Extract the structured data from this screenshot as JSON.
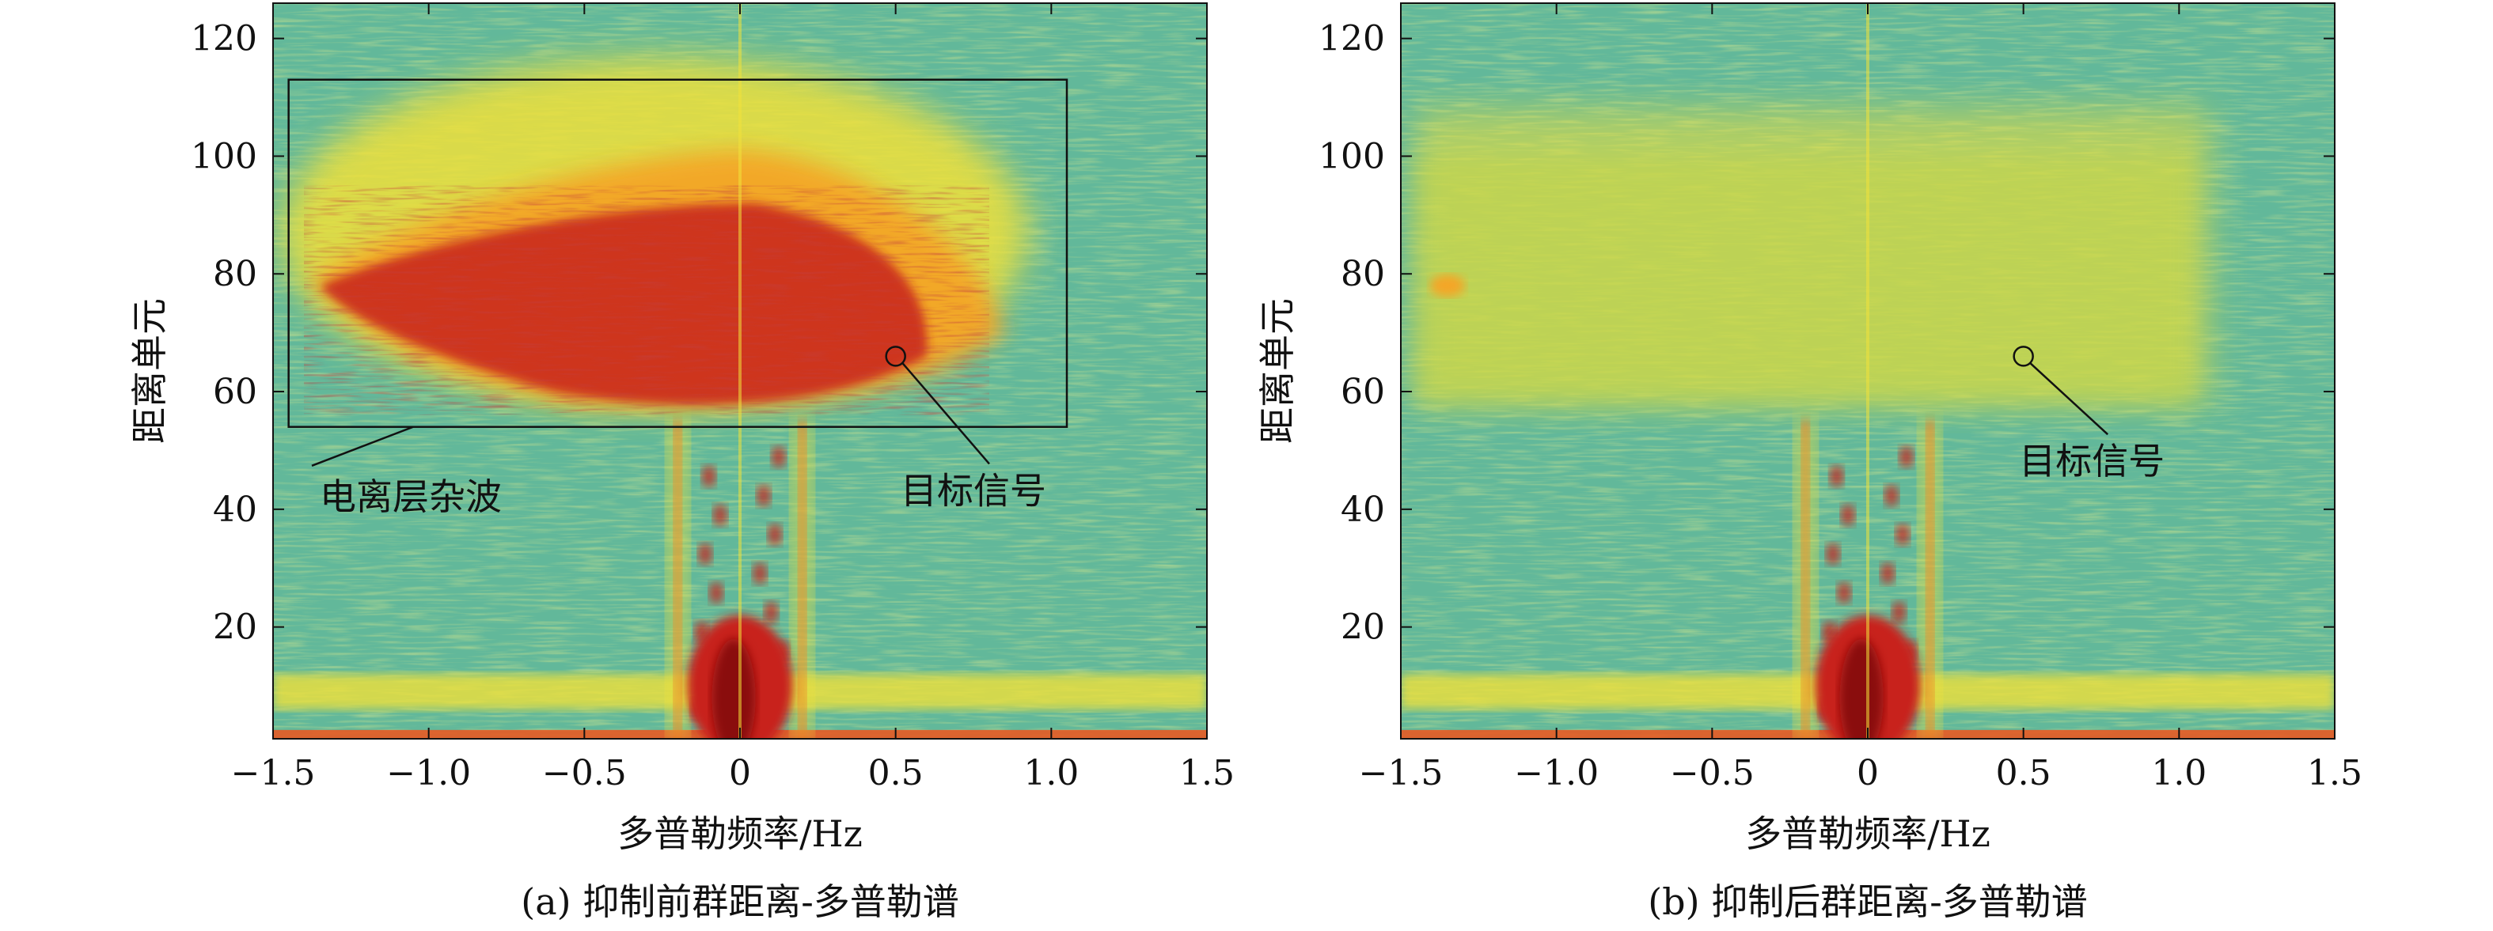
{
  "chart_data": [
    {
      "type": "heatmap",
      "panel": "a",
      "caption": "(a) 抑制前群距离-多普勒谱",
      "xlabel": "多普勒频率/Hz",
      "ylabel": "距离单元",
      "xlim": [
        -1.5,
        1.5
      ],
      "ylim": [
        1,
        126
      ],
      "xticks": [
        -1.5,
        -1.0,
        -0.5,
        0,
        0.5,
        1.0,
        1.5
      ],
      "xtick_labels": [
        "−1.5",
        "−1.0",
        "−0.5",
        "0",
        "0.5",
        "1.0",
        "1.5"
      ],
      "yticks": [
        20,
        40,
        60,
        80,
        100,
        120
      ],
      "ytick_labels": [
        "20",
        "40",
        "60",
        "80",
        "100",
        "120"
      ],
      "colormap": [
        "#1f6fd0",
        "#3fb0b8",
        "#62b89a",
        "#8cc47c",
        "#c6d64c",
        "#f0e13a",
        "#f4a628",
        "#e85a24",
        "#c8241c",
        "#8a0f0f"
      ],
      "regions": [
        {
          "name": "ionospheric-clutter",
          "doppler_range": [
            -1.4,
            0.85
          ],
          "range_cells": [
            56,
            110
          ],
          "intensity": "strong"
        },
        {
          "name": "sea-clutter-bragg",
          "doppler": [
            -0.2,
            0.2
          ],
          "range_cells": [
            1,
            55
          ],
          "intensity": "strong"
        },
        {
          "name": "dc-line",
          "doppler": 0,
          "range_cells": [
            1,
            126
          ],
          "intensity": "medium"
        }
      ],
      "box": {
        "x": [
          -1.45,
          1.05
        ],
        "y": [
          54,
          113
        ]
      },
      "annotations": [
        {
          "id": "clutter",
          "text": "电离层杂波",
          "point": [
            -1.05,
            54
          ],
          "label_at": [
            -1.35,
            40
          ]
        },
        {
          "id": "target",
          "text": "目标信号",
          "point": [
            0.5,
            66
          ],
          "label_at": [
            0.75,
            41
          ]
        }
      ]
    },
    {
      "type": "heatmap",
      "panel": "b",
      "caption": "(b) 抑制后群距离-多普勒谱",
      "xlabel": "多普勒频率/Hz",
      "ylabel": "距离单元",
      "xlim": [
        -1.5,
        1.5
      ],
      "ylim": [
        1,
        126
      ],
      "xticks": [
        -1.5,
        -1.0,
        -0.5,
        0,
        0.5,
        1.0,
        1.5
      ],
      "xtick_labels": [
        "−1.5",
        "−1.0",
        "−0.5",
        "0",
        "0.5",
        "1.0",
        "1.5"
      ],
      "yticks": [
        20,
        40,
        60,
        80,
        100,
        120
      ],
      "ytick_labels": [
        "20",
        "40",
        "60",
        "80",
        "100",
        "120"
      ],
      "colormap": [
        "#1f6fd0",
        "#3fb0b8",
        "#62b89a",
        "#8cc47c",
        "#c6d64c",
        "#f0e13a",
        "#f4a628",
        "#e85a24",
        "#c8241c",
        "#8a0f0f"
      ],
      "regions": [
        {
          "name": "residual-clutter",
          "doppler_range": [
            -1.4,
            1.0
          ],
          "range_cells": [
            56,
            110
          ],
          "intensity": "weak"
        },
        {
          "name": "sea-clutter-bragg",
          "doppler": [
            -0.2,
            0.2
          ],
          "range_cells": [
            1,
            55
          ],
          "intensity": "strong"
        },
        {
          "name": "dc-line",
          "doppler": 0,
          "range_cells": [
            1,
            126
          ],
          "intensity": "medium"
        }
      ],
      "annotations": [
        {
          "id": "target",
          "text": "目标信号",
          "point": [
            0.5,
            66
          ],
          "label_at": [
            0.72,
            46
          ]
        }
      ]
    }
  ]
}
